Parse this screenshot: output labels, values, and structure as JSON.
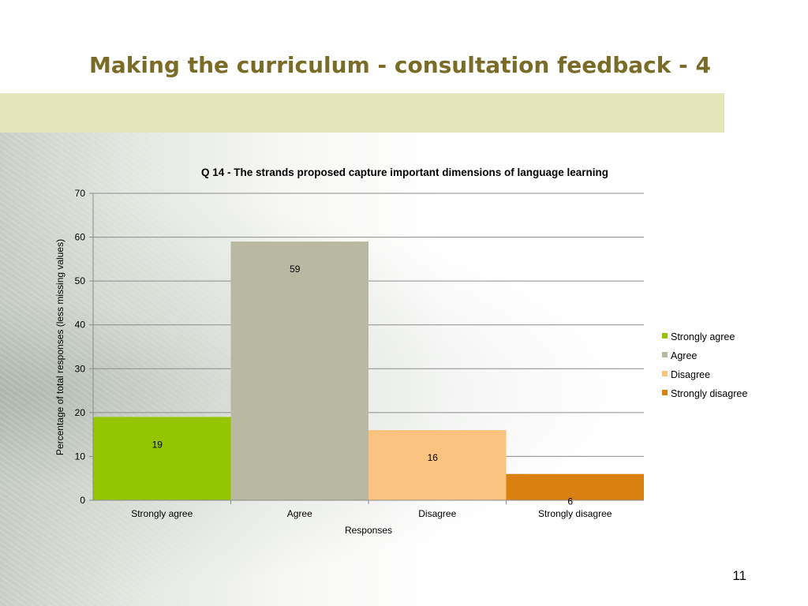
{
  "slide": {
    "title": "Making the curriculum - consultation feedback - 4",
    "page_number": "11"
  },
  "colors": {
    "title": "#7a6b26",
    "band": "#e5e5bb"
  },
  "chart_data": {
    "type": "bar",
    "title": "Q 14 - The strands proposed capture important dimensions of language learning",
    "xlabel": "Responses",
    "ylabel": "Percentage of total responses (less missing values)",
    "ylim": [
      0,
      70
    ],
    "yticks": [
      0,
      10,
      20,
      30,
      40,
      50,
      60,
      70
    ],
    "grid": true,
    "legend_position": "right",
    "categories": [
      "Strongly agree",
      "Agree",
      "Disagree",
      "Strongly disagree"
    ],
    "values": [
      19,
      59,
      16,
      6
    ],
    "data_labels": [
      "19",
      "59",
      "16",
      "6"
    ],
    "colors": [
      "#94c600",
      "#b8b9a0",
      "#f9c37f",
      "#d98010"
    ],
    "legend": [
      "Strongly agree",
      "Agree",
      "Disagree",
      "Strongly disagree"
    ]
  }
}
